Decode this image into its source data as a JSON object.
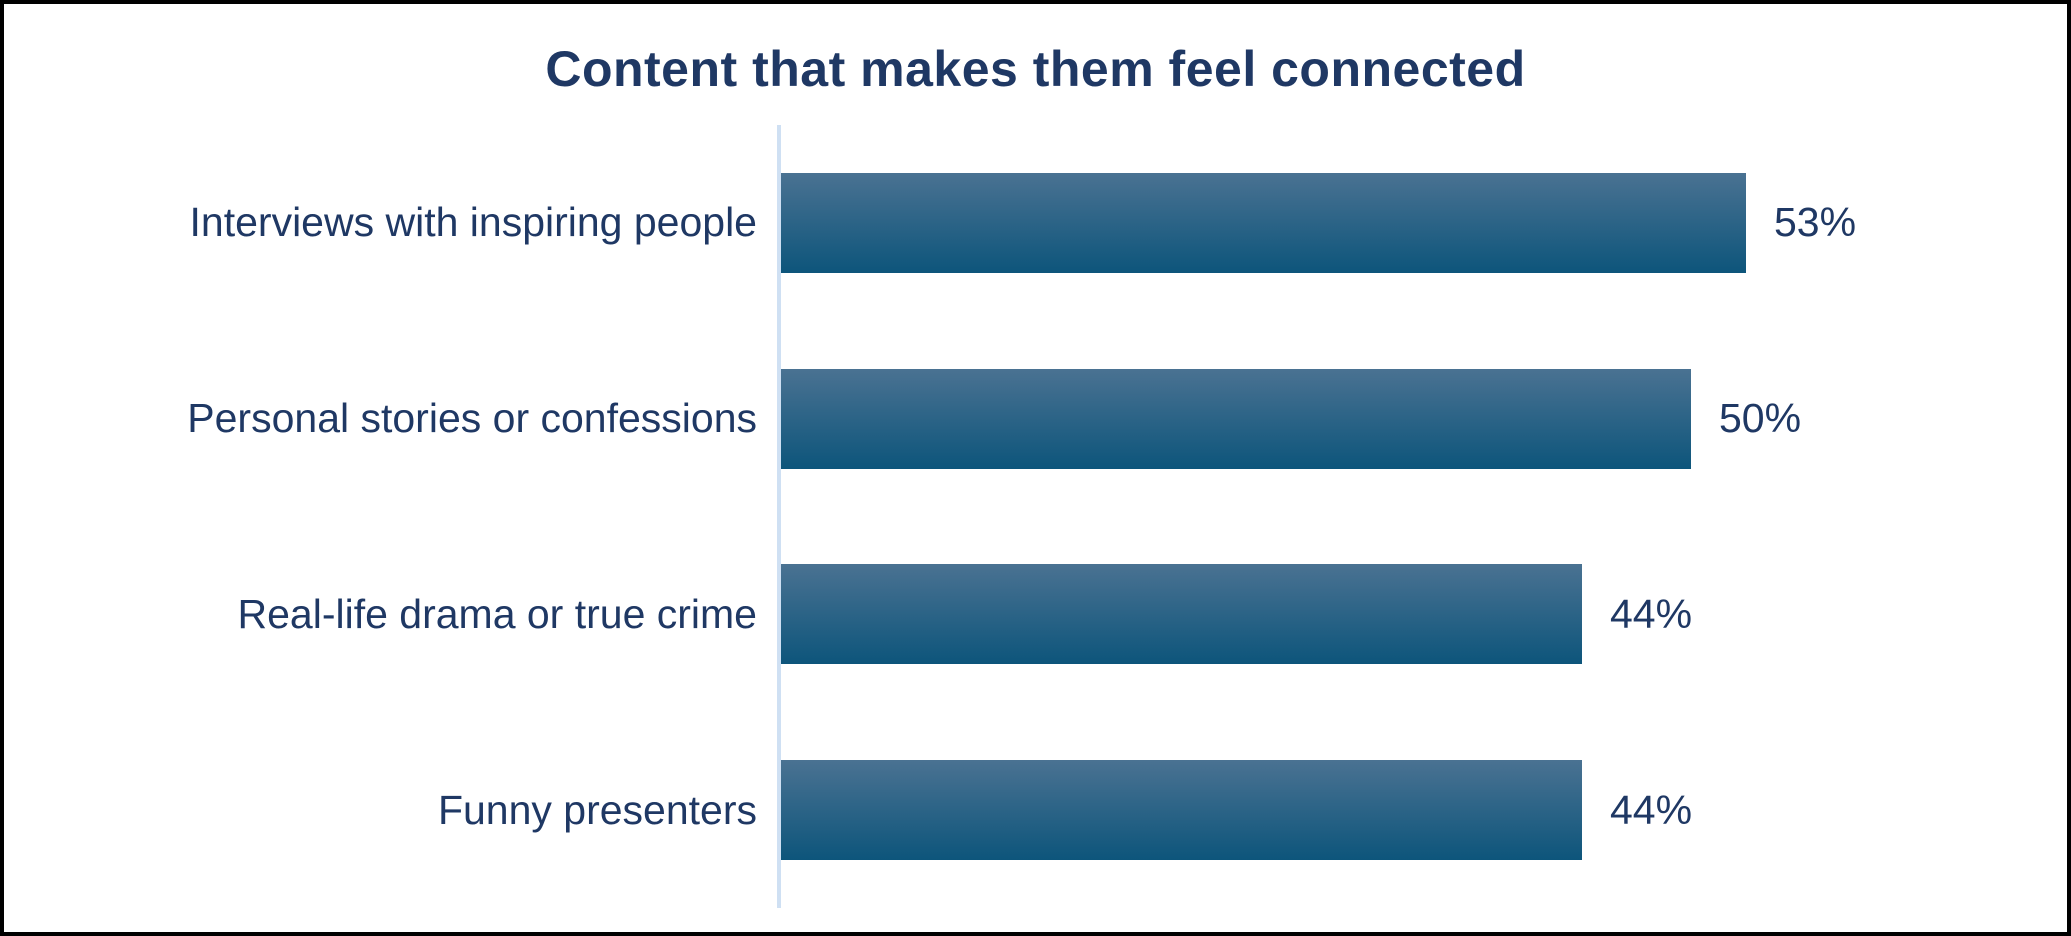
{
  "chart_data": {
    "type": "bar",
    "orientation": "horizontal",
    "title": "Content that makes them feel connected",
    "categories": [
      "Interviews with inspiring people",
      "Personal stories or confessions",
      "Real-life drama or true crime",
      "Funny presenters"
    ],
    "values": [
      53,
      50,
      44,
      44
    ],
    "value_labels": [
      "53%",
      "50%",
      "44%",
      "44%"
    ],
    "xlabel": "",
    "ylabel": "",
    "xlim": [
      0,
      70.6
    ],
    "grid": false,
    "legend": false,
    "bars_sorted_descending": true,
    "colors": {
      "title_text": "#1f3864",
      "label_text": "#1f3864",
      "value_text": "#1f3864",
      "axis_line": "#cfe0f3",
      "bar_gradient_top": "#4a7292",
      "bar_gradient_bottom": "#0d557b",
      "background": "#ffffff",
      "frame_border": "#000000"
    }
  }
}
